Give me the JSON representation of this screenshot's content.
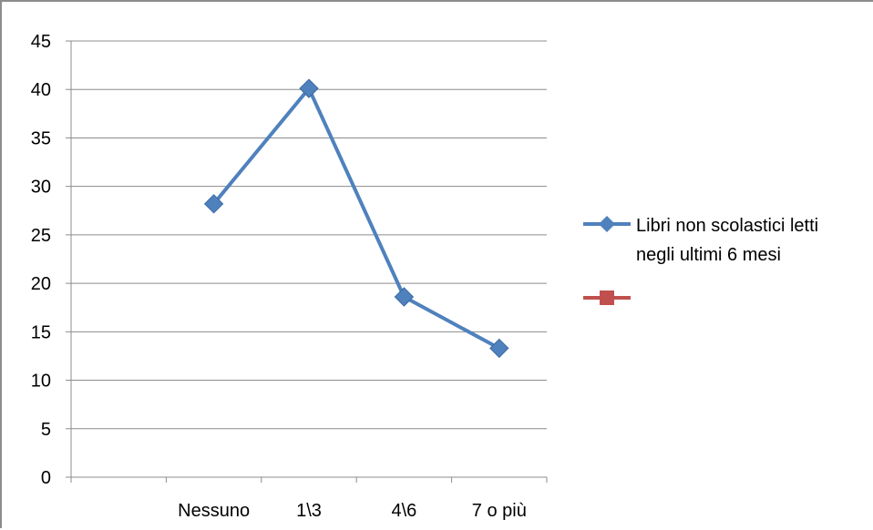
{
  "chart_data": {
    "type": "line",
    "categories": [
      "",
      "Nessuno",
      "1\\3",
      "4\\6",
      "7 o più"
    ],
    "series": [
      {
        "name": "Libri non scolastici letti negli ultimi 6 mesi",
        "values": [
          null,
          28.2,
          40.1,
          18.6,
          13.3
        ],
        "color": "#4f81bd",
        "marker": "diamond"
      },
      {
        "name": "",
        "values": [
          null,
          null,
          null,
          null,
          null
        ],
        "color": "#c0504d",
        "marker": "square"
      }
    ],
    "ylim": [
      0,
      45
    ],
    "yticks": [
      0,
      5,
      10,
      15,
      20,
      25,
      30,
      35,
      40,
      45
    ],
    "grid": true,
    "legend_position": "right",
    "legend_lines": [
      [
        "Libri non scolastici letti",
        "negli ultimi 6 mesi"
      ],
      []
    ]
  }
}
